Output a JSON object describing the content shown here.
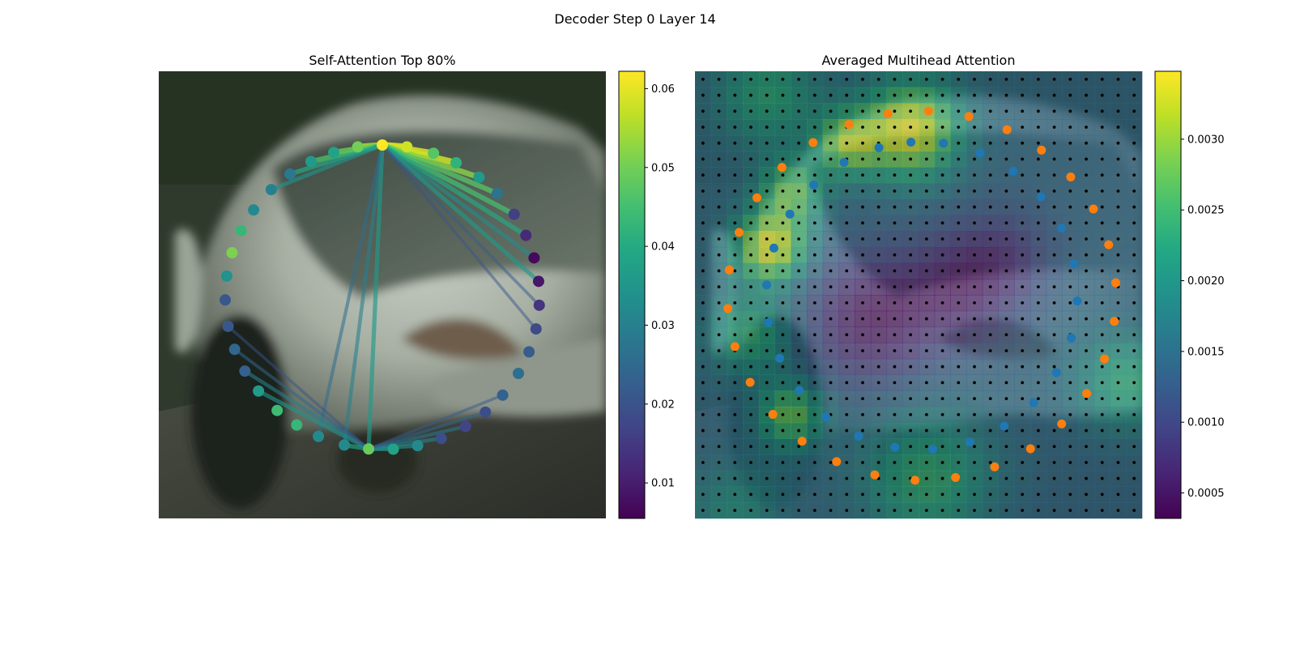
{
  "figure": {
    "suptitle": "Decoder Step 0 Layer 14"
  },
  "chart_data": [
    {
      "type": "scatter",
      "title": "Self-Attention Top 80%",
      "colormap": "viridis",
      "colorbar": {
        "range": [
          0.0055,
          0.0622
        ],
        "ticks": [
          0.01,
          0.02,
          0.03,
          0.04,
          0.05,
          0.06
        ],
        "tick_labels": [
          "0.01",
          "0.02",
          "0.03",
          "0.04",
          "0.05",
          "0.06"
        ]
      },
      "background": "photo of a silver car (front three-quarter view)",
      "axes_visible": false,
      "points": [
        {
          "angle": 270,
          "value": 0.062
        },
        {
          "angle": 279,
          "value": 0.058
        },
        {
          "angle": 289,
          "value": 0.047
        },
        {
          "angle": 298,
          "value": 0.042
        },
        {
          "angle": 308,
          "value": 0.036
        },
        {
          "angle": 317,
          "value": 0.027
        },
        {
          "angle": 327,
          "value": 0.016
        },
        {
          "angle": 336,
          "value": 0.012
        },
        {
          "angle": 345,
          "value": 0.007
        },
        {
          "angle": 354,
          "value": 0.009
        },
        {
          "angle": 3,
          "value": 0.014
        },
        {
          "angle": 12,
          "value": 0.018
        },
        {
          "angle": 21,
          "value": 0.022
        },
        {
          "angle": 30,
          "value": 0.026
        },
        {
          "angle": 40,
          "value": 0.023
        },
        {
          "angle": 49,
          "value": 0.019
        },
        {
          "angle": 58,
          "value": 0.017
        },
        {
          "angle": 68,
          "value": 0.019
        },
        {
          "angle": 77,
          "value": 0.032
        },
        {
          "angle": 86,
          "value": 0.038
        },
        {
          "angle": 95,
          "value": 0.049
        },
        {
          "angle": 104,
          "value": 0.032
        },
        {
          "angle": 114,
          "value": 0.032
        },
        {
          "angle": 123,
          "value": 0.043
        },
        {
          "angle": 132,
          "value": 0.044
        },
        {
          "angle": 142,
          "value": 0.036
        },
        {
          "angle": 151,
          "value": 0.023
        },
        {
          "angle": 160,
          "value": 0.024
        },
        {
          "angle": 169,
          "value": 0.021
        },
        {
          "angle": 179,
          "value": 0.021
        },
        {
          "angle": 188,
          "value": 0.034
        },
        {
          "angle": 197,
          "value": 0.051
        },
        {
          "angle": 206,
          "value": 0.043
        },
        {
          "angle": 215,
          "value": 0.032
        },
        {
          "angle": 225,
          "value": 0.03
        },
        {
          "angle": 234,
          "value": 0.028
        },
        {
          "angle": 243,
          "value": 0.036
        },
        {
          "angle": 252,
          "value": 0.038
        },
        {
          "angle": 261,
          "value": 0.05
        }
      ],
      "edges": [
        {
          "from": 0,
          "to": 1,
          "value": 0.06
        },
        {
          "from": 0,
          "to": 2,
          "value": 0.059
        },
        {
          "from": 0,
          "to": 3,
          "value": 0.058
        },
        {
          "from": 0,
          "to": 4,
          "value": 0.052
        },
        {
          "from": 0,
          "to": 5,
          "value": 0.047
        },
        {
          "from": 0,
          "to": 6,
          "value": 0.045
        },
        {
          "from": 0,
          "to": 7,
          "value": 0.04
        },
        {
          "from": 0,
          "to": 8,
          "value": 0.033
        },
        {
          "from": 0,
          "to": 9,
          "value": 0.036
        },
        {
          "from": 0,
          "to": 10,
          "value": 0.022
        },
        {
          "from": 0,
          "to": 11,
          "value": 0.02
        },
        {
          "from": 0,
          "to": 38,
          "value": 0.056
        },
        {
          "from": 0,
          "to": 37,
          "value": 0.05
        },
        {
          "from": 0,
          "to": 36,
          "value": 0.046
        },
        {
          "from": 0,
          "to": 35,
          "value": 0.04
        },
        {
          "from": 0,
          "to": 34,
          "value": 0.034
        },
        {
          "from": 0,
          "to": 20,
          "value": 0.036
        },
        {
          "from": 0,
          "to": 21,
          "value": 0.03
        },
        {
          "from": 0,
          "to": 22,
          "value": 0.026
        },
        {
          "from": 20,
          "to": 21,
          "value": 0.038
        },
        {
          "from": 20,
          "to": 19,
          "value": 0.036
        },
        {
          "from": 20,
          "to": 18,
          "value": 0.034
        },
        {
          "from": 20,
          "to": 17,
          "value": 0.031
        },
        {
          "from": 20,
          "to": 16,
          "value": 0.028
        },
        {
          "from": 20,
          "to": 15,
          "value": 0.024
        },
        {
          "from": 20,
          "to": 14,
          "value": 0.022
        },
        {
          "from": 20,
          "to": 25,
          "value": 0.034
        },
        {
          "from": 20,
          "to": 26,
          "value": 0.03
        },
        {
          "from": 20,
          "to": 27,
          "value": 0.024
        },
        {
          "from": 20,
          "to": 28,
          "value": 0.02
        }
      ]
    },
    {
      "type": "heatmap",
      "title": "Averaged Multihead Attention",
      "colormap": "viridis",
      "colorbar": {
        "range": [
          0.00032,
          0.00348
        ],
        "ticks": [
          0.0005,
          0.001,
          0.0015,
          0.002,
          0.0025,
          0.003
        ],
        "tick_labels": [
          "0.0005",
          "0.0010",
          "0.0015",
          "0.0020",
          "0.0025",
          "0.0030"
        ]
      },
      "grid": {
        "rows": 28,
        "cols": 28,
        "marker": "black dot at each cell center"
      },
      "background": "same car photo, darkened under attention overlay",
      "axes_visible": false,
      "hotspots": [
        {
          "row": 3.2,
          "col": 13.0,
          "value": 0.0034,
          "radius": 3.0
        },
        {
          "row": 4.0,
          "col": 9.0,
          "value": 0.0029,
          "radius": 2.0
        },
        {
          "row": 10.5,
          "col": 4.2,
          "value": 0.0034,
          "radius": 2.2
        },
        {
          "row": 7.0,
          "col": 5.5,
          "value": 0.0027,
          "radius": 2.0
        },
        {
          "row": 21.0,
          "col": 5.5,
          "value": 0.0028,
          "radius": 2.0
        },
        {
          "row": 16.0,
          "col": 3.0,
          "value": 0.0024,
          "radius": 2.5
        },
        {
          "row": 25.0,
          "col": 14.0,
          "value": 0.0024,
          "radius": 4.0
        },
        {
          "row": 19.0,
          "col": 26.5,
          "value": 0.0023,
          "radius": 3.0
        },
        {
          "row": 1.0,
          "col": 4.0,
          "value": 0.0023,
          "radius": 3.0
        },
        {
          "row": 27.0,
          "col": 2.0,
          "value": 0.002,
          "radius": 3.0
        },
        {
          "row": 15.0,
          "col": 10.5,
          "value": 0.0004,
          "radius": 4.0
        },
        {
          "row": 13.0,
          "col": 16.0,
          "value": 0.0006,
          "radius": 3.5
        },
        {
          "row": 11.0,
          "col": 19.0,
          "value": 0.0009,
          "radius": 3.0
        }
      ],
      "base_value": 0.0014,
      "ring_orange_angles": [
        272,
        284,
        296,
        308,
        320,
        332,
        344,
        356,
        8,
        20,
        32,
        44,
        56,
        68,
        80,
        92,
        104,
        116,
        128,
        140,
        152,
        164,
        176,
        188,
        200,
        212,
        224,
        236,
        248,
        260
      ],
      "ring_blue_angles": [
        278,
        292,
        306,
        320,
        334,
        348,
        2,
        16,
        30,
        44,
        58,
        72,
        86,
        100,
        114,
        128,
        142,
        156,
        170,
        184,
        198,
        212,
        226,
        240,
        254,
        266
      ],
      "ring_colors": {
        "outer": "#ff7f0e",
        "inner": "#1f77b4"
      }
    }
  ]
}
